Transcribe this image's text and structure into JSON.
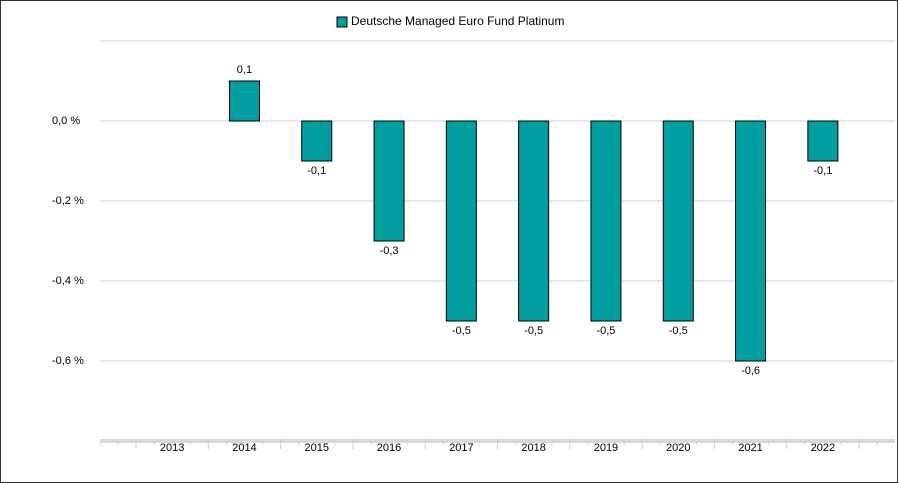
{
  "chart_data": {
    "type": "bar",
    "series": [
      {
        "name": "Deutsche Managed Euro Fund Platinum",
        "color": "#009e9e",
        "values": [
          null,
          0.1,
          -0.1,
          -0.3,
          -0.5,
          -0.5,
          -0.5,
          -0.5,
          -0.6,
          -0.1
        ],
        "value_labels": [
          null,
          "0,1",
          "-0,1",
          "-0,3",
          "-0,5",
          "-0,5",
          "-0,5",
          "-0,5",
          "-0,6",
          "-0,1"
        ]
      }
    ],
    "categories": [
      "2013",
      "2014",
      "2015",
      "2016",
      "2017",
      "2018",
      "2019",
      "2020",
      "2021",
      "2022"
    ],
    "ylim": [
      -0.8,
      0.2
    ],
    "yticks": [
      {
        "value": 0,
        "label": "0,0 %"
      },
      {
        "value": -0.2,
        "label": "-0,2 %"
      },
      {
        "value": -0.4,
        "label": "-0,4 %"
      },
      {
        "value": -0.6,
        "label": "-0,6 %"
      }
    ],
    "grid": true
  }
}
